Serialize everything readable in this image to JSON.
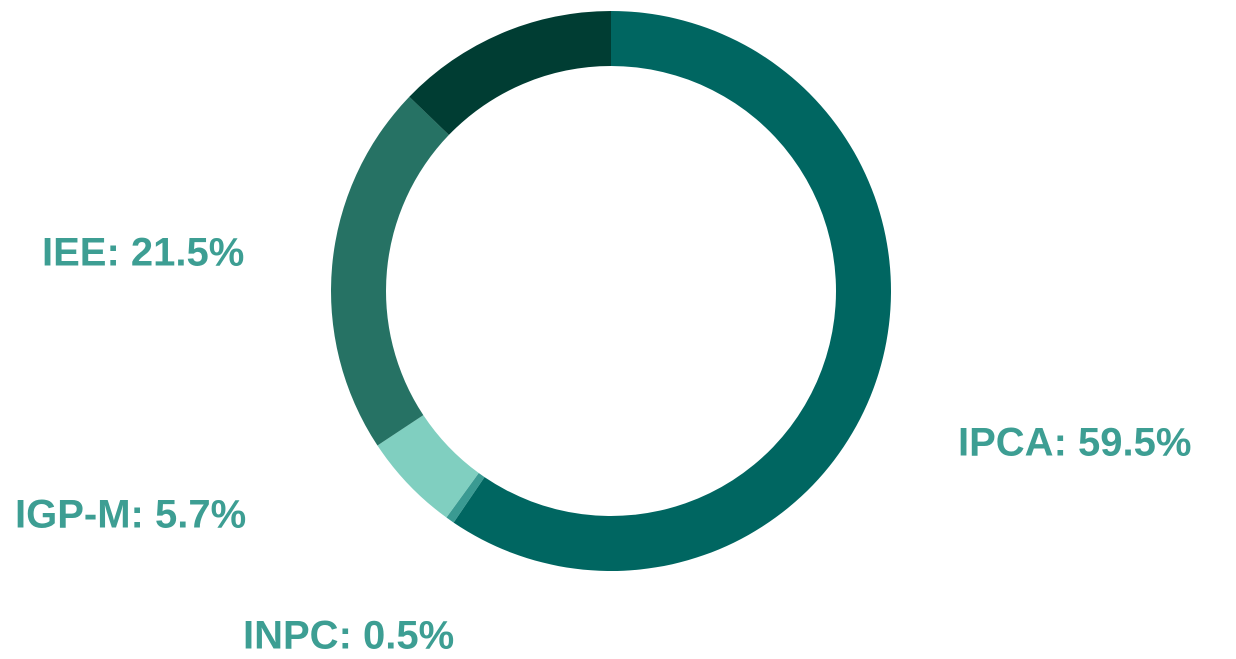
{
  "chart_data": {
    "type": "donut",
    "values": [
      59.5,
      0.5,
      5.7,
      21.5,
      12.8
    ],
    "value_labels": [
      "IPCA: 59.5%",
      "INPC: 0.5%",
      "IGP-M: 5.7%",
      "IEE: 21.5%",
      null
    ],
    "colors": [
      "#006661",
      "#3a9a92",
      "#80cfc0",
      "#267264",
      "#003d33"
    ],
    "label_color": "#3d9e93"
  }
}
